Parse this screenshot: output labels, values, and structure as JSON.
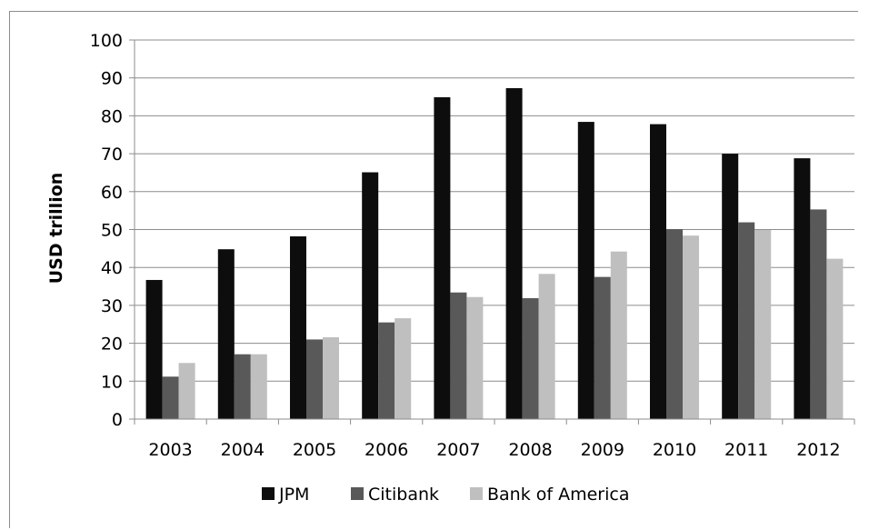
{
  "chart_data": {
    "type": "bar",
    "title": "",
    "xlabel": "",
    "ylabel": "USD trillion",
    "ylim": [
      0,
      100
    ],
    "yticks": [
      0,
      10,
      20,
      30,
      40,
      50,
      60,
      70,
      80,
      90,
      100
    ],
    "grid": true,
    "legend_position": "bottom",
    "categories": [
      "2003",
      "2004",
      "2005",
      "2006",
      "2007",
      "2008",
      "2009",
      "2010",
      "2011",
      "2012"
    ],
    "series": [
      {
        "name": "JPM",
        "color": "#0d0d0d",
        "values": [
          36.7,
          44.8,
          48.2,
          65.1,
          84.9,
          87.3,
          78.4,
          77.8,
          70.0,
          68.8
        ]
      },
      {
        "name": "Citibank",
        "color": "#595959",
        "values": [
          11.2,
          17.1,
          21.0,
          25.5,
          33.4,
          31.9,
          37.5,
          50.1,
          51.9,
          55.3
        ]
      },
      {
        "name": "Bank of America",
        "color": "#bfbfbf",
        "values": [
          14.8,
          17.1,
          21.6,
          26.6,
          32.2,
          38.3,
          44.2,
          48.4,
          49.9,
          42.3
        ]
      }
    ]
  }
}
